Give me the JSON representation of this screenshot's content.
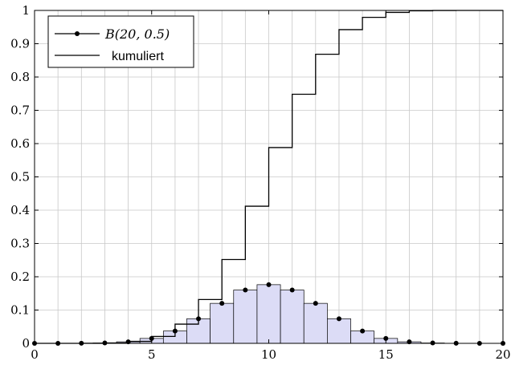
{
  "chart_data": {
    "type": "bar",
    "x": [
      0,
      1,
      2,
      3,
      4,
      5,
      6,
      7,
      8,
      9,
      10,
      11,
      12,
      13,
      14,
      15,
      16,
      17,
      18,
      19,
      20
    ],
    "series": [
      {
        "name": "B(20, 0.5)",
        "kind": "bar+points",
        "values": [
          1e-06,
          1.9e-05,
          0.000181,
          0.001087,
          0.004621,
          0.014786,
          0.036964,
          0.073929,
          0.120134,
          0.160179,
          0.176197,
          0.160179,
          0.120134,
          0.073929,
          0.036964,
          0.014786,
          0.004621,
          0.001087,
          0.000181,
          1.9e-05,
          1e-06
        ]
      },
      {
        "name": "kumuliert",
        "kind": "step",
        "values": [
          1e-06,
          2e-05,
          0.000201,
          0.001288,
          0.005909,
          0.020695,
          0.057659,
          0.131588,
          0.251722,
          0.411901,
          0.588099,
          0.748278,
          0.868412,
          0.942341,
          0.979305,
          0.994091,
          0.998712,
          0.999799,
          0.99998,
          0.999999,
          1.0
        ]
      }
    ],
    "xticks": [
      "0",
      "5",
      "10",
      "15",
      "20"
    ],
    "yticks": [
      "0",
      "0.1",
      "0.2",
      "0.3",
      "0.4",
      "0.5",
      "0.6",
      "0.7",
      "0.8",
      "0.9",
      "1"
    ],
    "xlim": [
      0,
      20
    ],
    "ylim": [
      0,
      1
    ],
    "grid": true,
    "legend_position": "top-left",
    "colors": {
      "bar_fill": "#dcdcf6",
      "line": "#000000",
      "grid": "#c8c8c8"
    }
  },
  "legend": {
    "entries": [
      {
        "label": "B(20, 0.5)"
      },
      {
        "label": "kumuliert"
      }
    ]
  }
}
